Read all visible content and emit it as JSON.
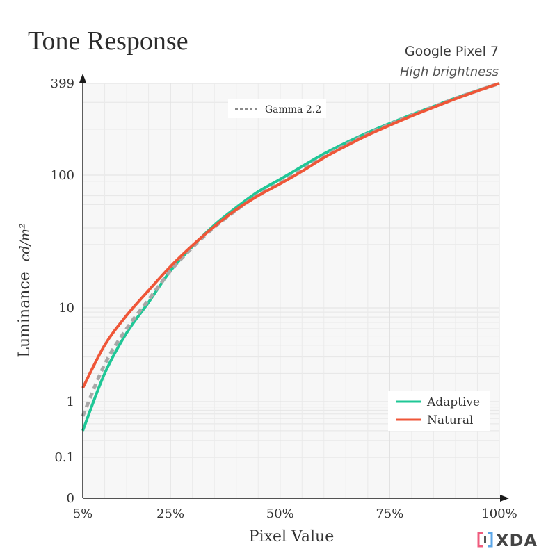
{
  "title": "Tone Response",
  "subtitle_device": "Google Pixel 7",
  "subtitle_mode": "High brightness",
  "logo_text": "XDA",
  "chart_data": {
    "type": "line",
    "xlabel": "Pixel Value",
    "ylabel": "Luminance",
    "ylabel_unit": "cd/m²",
    "x_scale": "linear",
    "y_scale": "log",
    "xlim": [
      5,
      100
    ],
    "ylim": [
      0,
      399
    ],
    "x_ticks": [
      5,
      25,
      50,
      75,
      100
    ],
    "x_tick_labels": [
      "5%",
      "25%",
      "50%",
      "75%",
      "100%"
    ],
    "y_ticks": [
      0,
      0.1,
      1,
      10,
      100,
      399
    ],
    "y_tick_labels": [
      "0",
      "0.1",
      "1",
      "10",
      "100",
      "399"
    ],
    "grid": true,
    "legend_top": "top-center",
    "legend_bottom": "bottom-right",
    "series": [
      {
        "name": "Gamma 2.2",
        "style": "dashed",
        "color": "#a8a8a8",
        "x": [
          5,
          10,
          15,
          20,
          25,
          30,
          35,
          40,
          45,
          50,
          55,
          60,
          65,
          70,
          75,
          80,
          85,
          90,
          95,
          100
        ],
        "y": [
          0.55,
          2.5,
          6.0,
          11.5,
          19.0,
          28.5,
          40.5,
          54.5,
          71.0,
          87.0,
          108,
          132,
          158,
          186,
          215,
          246,
          280,
          318,
          357,
          399
        ]
      },
      {
        "name": "Adaptive",
        "style": "solid",
        "color": "#1fc796",
        "x": [
          5,
          10,
          15,
          20,
          25,
          30,
          35,
          40,
          45,
          50,
          55,
          60,
          65,
          70,
          75,
          80,
          85,
          90,
          95,
          100
        ],
        "y": [
          0.3,
          2.0,
          5.4,
          11.0,
          19.0,
          29.0,
          42.0,
          57.0,
          75.0,
          93.0,
          114,
          138,
          163,
          190,
          218,
          249,
          282,
          320,
          358,
          399
        ]
      },
      {
        "name": "Natural",
        "style": "solid",
        "color": "#ef5638",
        "x": [
          5,
          10,
          15,
          20,
          25,
          30,
          35,
          40,
          45,
          50,
          55,
          60,
          65,
          70,
          75,
          80,
          85,
          90,
          95,
          100
        ],
        "y": [
          1.4,
          4.0,
          8.3,
          13.5,
          20.5,
          29.5,
          41.0,
          55.0,
          70.0,
          86.0,
          106,
          130,
          155,
          183,
          212,
          244,
          278,
          316,
          356,
          399
        ]
      }
    ]
  },
  "colors": {
    "axis": "#1a1a1a",
    "text": "#333333",
    "grid": "#e6e6e6",
    "plot_bg": "#f7f7f7",
    "logo_accent": "#ef5c7e"
  }
}
